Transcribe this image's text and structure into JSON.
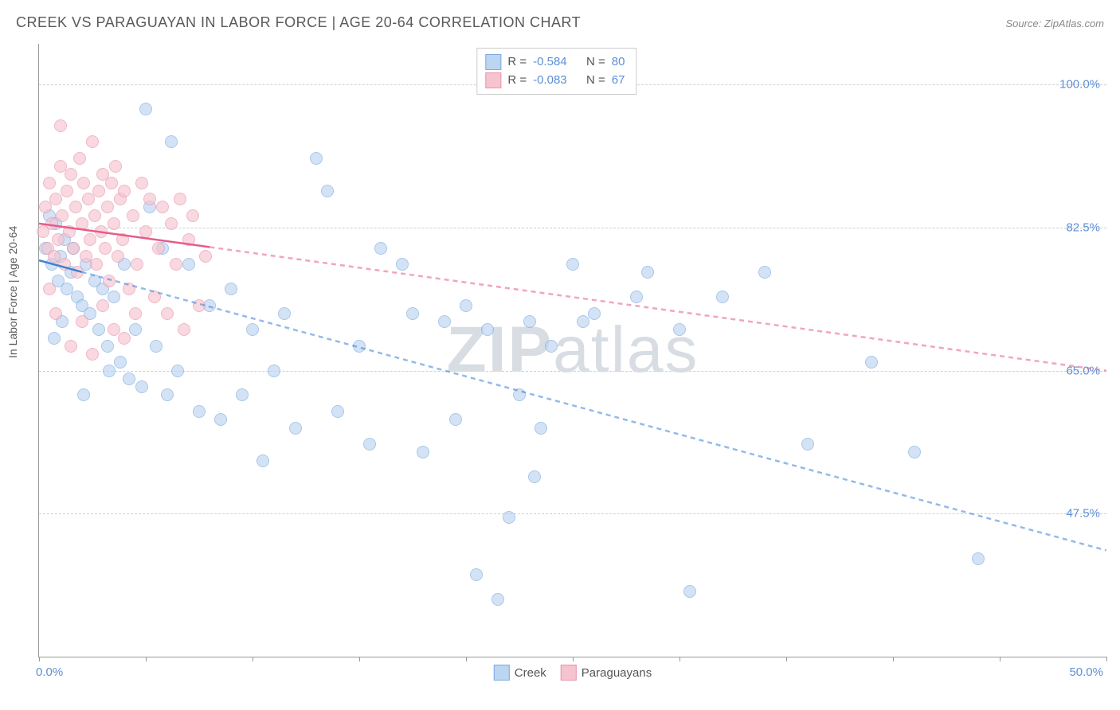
{
  "title": "CREEK VS PARAGUAYAN IN LABOR FORCE | AGE 20-64 CORRELATION CHART",
  "source": "Source: ZipAtlas.com",
  "y_axis_label": "In Labor Force | Age 20-64",
  "watermark_bold": "ZIP",
  "watermark_light": "atlas",
  "chart": {
    "type": "scatter",
    "xlim": [
      0,
      50
    ],
    "ylim": [
      30,
      105
    ],
    "x_ticks_major": [
      0,
      50
    ],
    "x_ticks_minor": [
      5,
      10,
      15,
      20,
      25,
      30,
      35,
      40,
      45
    ],
    "y_ticks": [
      47.5,
      65.0,
      82.5,
      100.0
    ],
    "grid_color": "#d0d0d0",
    "background_color": "#ffffff",
    "axis_color": "#999999",
    "tick_label_color": "#5b8fd6",
    "marker_radius": 8,
    "series": [
      {
        "name": "Creek",
        "fill": "#bcd5f0",
        "stroke": "#7baae0",
        "fill_opacity": 0.65,
        "r": -0.584,
        "n": 80,
        "trend": {
          "x1": 0,
          "y1": 78.5,
          "x2": 50,
          "y2": 43,
          "solid_until_x": 2,
          "stroke": "#3b82d6",
          "width": 2.5
        },
        "points": [
          [
            0.3,
            80
          ],
          [
            0.5,
            84
          ],
          [
            0.6,
            78
          ],
          [
            0.8,
            83
          ],
          [
            0.9,
            76
          ],
          [
            1.0,
            79
          ],
          [
            1.2,
            81
          ],
          [
            1.3,
            75
          ],
          [
            1.5,
            77
          ],
          [
            1.6,
            80
          ],
          [
            1.8,
            74
          ],
          [
            2.0,
            73
          ],
          [
            2.2,
            78
          ],
          [
            2.4,
            72
          ],
          [
            2.6,
            76
          ],
          [
            2.8,
            70
          ],
          [
            3.0,
            75
          ],
          [
            3.2,
            68
          ],
          [
            3.5,
            74
          ],
          [
            3.8,
            66
          ],
          [
            4.0,
            78
          ],
          [
            4.2,
            64
          ],
          [
            4.5,
            70
          ],
          [
            4.8,
            63
          ],
          [
            5.0,
            97
          ],
          [
            5.2,
            85
          ],
          [
            5.5,
            68
          ],
          [
            5.8,
            80
          ],
          [
            6.0,
            62
          ],
          [
            6.5,
            65
          ],
          [
            7.0,
            78
          ],
          [
            7.5,
            60
          ],
          [
            8.0,
            73
          ],
          [
            8.5,
            59
          ],
          [
            9.0,
            75
          ],
          [
            9.5,
            62
          ],
          [
            10.0,
            70
          ],
          [
            10.5,
            54
          ],
          [
            11.0,
            65
          ],
          [
            11.5,
            72
          ],
          [
            12.0,
            58
          ],
          [
            13.0,
            91
          ],
          [
            13.5,
            87
          ],
          [
            14.0,
            60
          ],
          [
            15.0,
            68
          ],
          [
            15.5,
            56
          ],
          [
            16.0,
            80
          ],
          [
            17.0,
            78
          ],
          [
            17.5,
            72
          ],
          [
            18.0,
            55
          ],
          [
            19.0,
            71
          ],
          [
            19.5,
            59
          ],
          [
            20.0,
            73
          ],
          [
            20.5,
            40
          ],
          [
            21.0,
            70
          ],
          [
            21.5,
            37
          ],
          [
            22.0,
            47
          ],
          [
            22.5,
            62
          ],
          [
            23.0,
            71
          ],
          [
            23.5,
            58
          ],
          [
            24.0,
            68
          ],
          [
            25.0,
            78
          ],
          [
            25.5,
            71
          ],
          [
            26.0,
            72
          ],
          [
            28.0,
            74
          ],
          [
            28.5,
            77
          ],
          [
            30.0,
            70
          ],
          [
            32.0,
            74
          ],
          [
            34.0,
            77
          ],
          [
            36.0,
            56
          ],
          [
            39.0,
            66
          ],
          [
            41.0,
            55
          ],
          [
            44.0,
            42
          ],
          [
            30.5,
            38
          ],
          [
            23.2,
            52
          ],
          [
            6.2,
            93
          ],
          [
            3.3,
            65
          ],
          [
            2.1,
            62
          ],
          [
            1.1,
            71
          ],
          [
            0.7,
            69
          ]
        ]
      },
      {
        "name": "Paraguayans",
        "fill": "#f6c4d0",
        "stroke": "#e893ad",
        "fill_opacity": 0.65,
        "r": -0.083,
        "n": 67,
        "trend": {
          "x1": 0,
          "y1": 83,
          "x2": 50,
          "y2": 65,
          "solid_until_x": 8,
          "stroke": "#e95a8c",
          "width": 2.5
        },
        "points": [
          [
            0.2,
            82
          ],
          [
            0.3,
            85
          ],
          [
            0.4,
            80
          ],
          [
            0.5,
            88
          ],
          [
            0.6,
            83
          ],
          [
            0.7,
            79
          ],
          [
            0.8,
            86
          ],
          [
            0.9,
            81
          ],
          [
            1.0,
            90
          ],
          [
            1.1,
            84
          ],
          [
            1.2,
            78
          ],
          [
            1.3,
            87
          ],
          [
            1.4,
            82
          ],
          [
            1.5,
            89
          ],
          [
            1.6,
            80
          ],
          [
            1.7,
            85
          ],
          [
            1.8,
            77
          ],
          [
            1.9,
            91
          ],
          [
            2.0,
            83
          ],
          [
            2.1,
            88
          ],
          [
            2.2,
            79
          ],
          [
            2.3,
            86
          ],
          [
            2.4,
            81
          ],
          [
            2.5,
            93
          ],
          [
            2.6,
            84
          ],
          [
            2.7,
            78
          ],
          [
            2.8,
            87
          ],
          [
            2.9,
            82
          ],
          [
            3.0,
            89
          ],
          [
            3.1,
            80
          ],
          [
            3.2,
            85
          ],
          [
            3.3,
            76
          ],
          [
            3.4,
            88
          ],
          [
            3.5,
            83
          ],
          [
            3.6,
            90
          ],
          [
            3.7,
            79
          ],
          [
            3.8,
            86
          ],
          [
            3.9,
            81
          ],
          [
            4.0,
            87
          ],
          [
            4.2,
            75
          ],
          [
            4.4,
            84
          ],
          [
            4.6,
            78
          ],
          [
            4.8,
            88
          ],
          [
            5.0,
            82
          ],
          [
            5.2,
            86
          ],
          [
            5.4,
            74
          ],
          [
            5.6,
            80
          ],
          [
            5.8,
            85
          ],
          [
            6.0,
            72
          ],
          [
            6.2,
            83
          ],
          [
            6.4,
            78
          ],
          [
            6.6,
            86
          ],
          [
            6.8,
            70
          ],
          [
            7.0,
            81
          ],
          [
            7.2,
            84
          ],
          [
            7.5,
            73
          ],
          [
            7.8,
            79
          ],
          [
            1.0,
            95
          ],
          [
            1.5,
            68
          ],
          [
            2.0,
            71
          ],
          [
            2.5,
            67
          ],
          [
            3.0,
            73
          ],
          [
            3.5,
            70
          ],
          [
            4.0,
            69
          ],
          [
            4.5,
            72
          ],
          [
            0.5,
            75
          ],
          [
            0.8,
            72
          ]
        ]
      }
    ]
  },
  "legend_bottom": [
    {
      "label": "Creek",
      "fill": "#bcd5f0",
      "stroke": "#7baae0"
    },
    {
      "label": "Paraguayans",
      "fill": "#f6c4d0",
      "stroke": "#e893ad"
    }
  ],
  "x_tick_labels": {
    "left": "0.0%",
    "right": "50.0%"
  },
  "y_tick_labels": [
    "47.5%",
    "65.0%",
    "82.5%",
    "100.0%"
  ],
  "legend_top_labels": {
    "r": "R =",
    "n": "N ="
  }
}
